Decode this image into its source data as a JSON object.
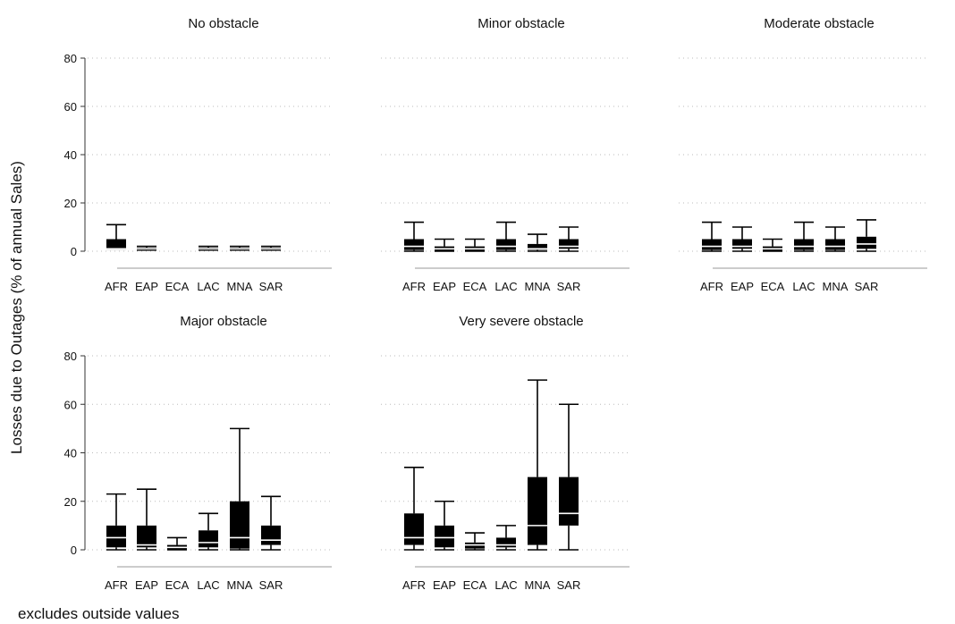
{
  "y_axis_label": "Losses due to Outages (% of annual Sales)",
  "note": "excludes outside values",
  "colors": {
    "box": "#000000",
    "median": "#ffffff",
    "grid": "#bbbbbb",
    "axis": "#999999"
  },
  "chart_data": {
    "type": "box",
    "ylim": [
      0,
      80
    ],
    "yticks": [
      0,
      20,
      40,
      60,
      80
    ],
    "grid": "dotted horizontal at y ticks",
    "categories": [
      "AFR",
      "EAP",
      "ECA",
      "LAC",
      "MNA",
      "SAR"
    ],
    "panels": [
      {
        "title": "No obstacle",
        "boxes": [
          {
            "category": "AFR",
            "min": 1,
            "q1": 1,
            "median": 1,
            "q3": 5,
            "max": 11
          },
          {
            "category": "EAP",
            "min": 0.5,
            "q1": 0.5,
            "median": 1,
            "q3": 1.5,
            "max": 2
          },
          null,
          {
            "category": "LAC",
            "min": 0.5,
            "q1": 0.5,
            "median": 1,
            "q3": 1.5,
            "max": 2
          },
          {
            "category": "MNA",
            "min": 0.5,
            "q1": 0.5,
            "median": 1,
            "q3": 1.5,
            "max": 2
          },
          {
            "category": "SAR",
            "min": 0.5,
            "q1": 0.5,
            "median": 1,
            "q3": 1.5,
            "max": 2
          }
        ]
      },
      {
        "title": "Minor obstacle",
        "boxes": [
          {
            "category": "AFR",
            "min": 0,
            "q1": 0.5,
            "median": 2,
            "q3": 5,
            "max": 12
          },
          {
            "category": "EAP",
            "min": 0,
            "q1": 0,
            "median": 1,
            "q3": 2,
            "max": 5
          },
          {
            "category": "ECA",
            "min": 0,
            "q1": 0,
            "median": 1,
            "q3": 2,
            "max": 5
          },
          {
            "category": "LAC",
            "min": 0,
            "q1": 0.5,
            "median": 2,
            "q3": 5,
            "max": 12
          },
          {
            "category": "MNA",
            "min": 0,
            "q1": 0.5,
            "median": 1,
            "q3": 3,
            "max": 7
          },
          {
            "category": "SAR",
            "min": 0,
            "q1": 1,
            "median": 2,
            "q3": 5,
            "max": 10
          }
        ]
      },
      {
        "title": "Moderate obstacle",
        "boxes": [
          {
            "category": "AFR",
            "min": 0,
            "q1": 0.5,
            "median": 2,
            "q3": 5,
            "max": 12
          },
          {
            "category": "EAP",
            "min": 0,
            "q1": 1,
            "median": 2,
            "q3": 5,
            "max": 10
          },
          {
            "category": "ECA",
            "min": 0,
            "q1": 0,
            "median": 1,
            "q3": 2,
            "max": 5
          },
          {
            "category": "LAC",
            "min": 0,
            "q1": 0.5,
            "median": 2,
            "q3": 5,
            "max": 12
          },
          {
            "category": "MNA",
            "min": 0,
            "q1": 0.5,
            "median": 2,
            "q3": 5,
            "max": 10
          },
          {
            "category": "SAR",
            "min": 0,
            "q1": 1,
            "median": 3,
            "q3": 6,
            "max": 13
          }
        ]
      },
      {
        "title": "Major obstacle",
        "boxes": [
          {
            "category": "AFR",
            "min": 0,
            "q1": 1,
            "median": 5,
            "q3": 10,
            "max": 23
          },
          {
            "category": "EAP",
            "min": 0,
            "q1": 1,
            "median": 2,
            "q3": 10,
            "max": 25
          },
          {
            "category": "ECA",
            "min": 0,
            "q1": 0,
            "median": 1,
            "q3": 2,
            "max": 5
          },
          {
            "category": "LAC",
            "min": 0,
            "q1": 1,
            "median": 3,
            "q3": 8,
            "max": 15
          },
          {
            "category": "MNA",
            "min": 0,
            "q1": 0.5,
            "median": 5,
            "q3": 20,
            "max": 50
          },
          {
            "category": "SAR",
            "min": 0,
            "q1": 2,
            "median": 4,
            "q3": 10,
            "max": 22
          }
        ]
      },
      {
        "title": "Very severe obstacle",
        "boxes": [
          {
            "category": "AFR",
            "min": 0,
            "q1": 2,
            "median": 5,
            "q3": 15,
            "max": 34
          },
          {
            "category": "EAP",
            "min": 0,
            "q1": 1,
            "median": 5,
            "q3": 10,
            "max": 20
          },
          {
            "category": "ECA",
            "min": 0,
            "q1": 0.5,
            "median": 2,
            "q3": 3,
            "max": 7
          },
          {
            "category": "LAC",
            "min": 0,
            "q1": 1,
            "median": 2,
            "q3": 5,
            "max": 10
          },
          {
            "category": "MNA",
            "min": 0,
            "q1": 2,
            "median": 10,
            "q3": 30,
            "max": 70
          },
          {
            "category": "SAR",
            "min": 0,
            "q1": 10,
            "median": 15,
            "q3": 30,
            "max": 60
          }
        ]
      }
    ]
  }
}
